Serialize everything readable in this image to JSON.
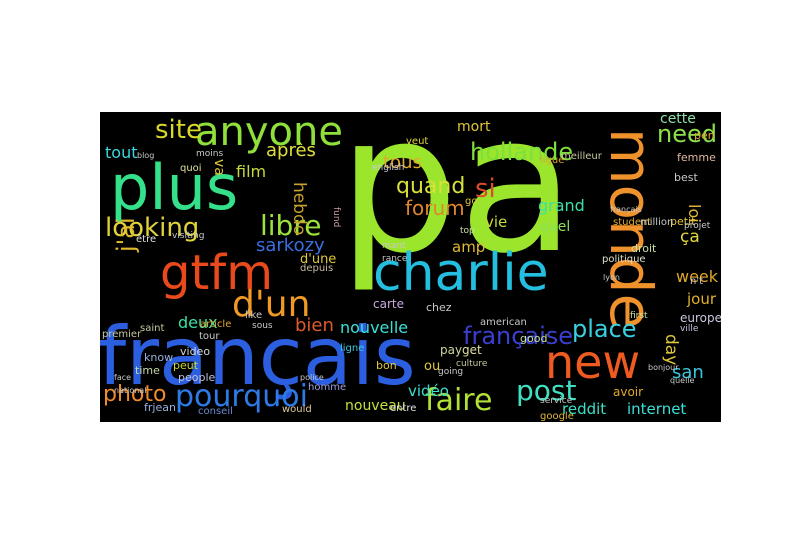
{
  "wordcloud": {
    "background": "#000000",
    "words": [
      {
        "text": "pa",
        "color": "#9be62c"
      },
      {
        "text": "français",
        "color": "#2c5fe0"
      },
      {
        "text": "monde",
        "color": "#f0922c"
      },
      {
        "text": "plus",
        "color": "#35e08a"
      },
      {
        "text": "charlie",
        "color": "#24bfe0"
      },
      {
        "text": "gtfm",
        "color": "#e84a1c"
      },
      {
        "text": "anyone",
        "color": "#8fe03a"
      },
      {
        "text": "new",
        "color": "#ef5a20"
      },
      {
        "text": "d'un",
        "color": "#f09a24"
      },
      {
        "text": "pourquoi",
        "color": "#2d7be6"
      },
      {
        "text": "faire",
        "color": "#b2e034"
      },
      {
        "text": "française",
        "color": "#3b3fcf"
      },
      {
        "text": "hollande",
        "color": "#7ee03a"
      },
      {
        "text": "site",
        "color": "#d8d82a"
      },
      {
        "text": "looking",
        "color": "#e0d23a"
      },
      {
        "text": "libre",
        "color": "#9be23a"
      },
      {
        "text": "photo",
        "color": "#f08a2c"
      },
      {
        "text": "post",
        "color": "#3ee0c0"
      },
      {
        "text": "place",
        "color": "#3ad0e0"
      },
      {
        "text": "need",
        "color": "#8ce24a"
      },
      {
        "text": "si",
        "color": "#e04a2c"
      },
      {
        "text": "quand",
        "color": "#d8e03a"
      },
      {
        "text": "forum",
        "color": "#e0862c"
      },
      {
        "text": "tous",
        "color": "#e0aa2c"
      },
      {
        "text": "sarkozy",
        "color": "#3a6ee0"
      },
      {
        "text": "j'ai",
        "color": "#e0bb2c"
      },
      {
        "text": "bien",
        "color": "#e05a2c"
      },
      {
        "text": "après",
        "color": "#e0e03a"
      },
      {
        "text": "hebdo",
        "color": "#c8a22c"
      },
      {
        "text": "film",
        "color": "#c8d83a"
      },
      {
        "text": "grand",
        "color": "#3ae0a8"
      },
      {
        "text": "nouvelle",
        "color": "#3ae0d8"
      },
      {
        "text": "deux",
        "color": "#3ae0a0"
      },
      {
        "text": "week",
        "color": "#e0a82c"
      },
      {
        "text": "jour",
        "color": "#e0b22c"
      },
      {
        "text": "day",
        "color": "#e0c83a"
      },
      {
        "text": "san",
        "color": "#3ac8e0"
      },
      {
        "text": "vie",
        "color": "#c8d83a"
      },
      {
        "text": "amp",
        "color": "#e0b83a"
      },
      {
        "text": "mort",
        "color": "#e0c83a"
      },
      {
        "text": "cette",
        "color": "#8ce0a8"
      },
      {
        "text": "tout",
        "color": "#3ad8e0"
      },
      {
        "text": "vidéo",
        "color": "#3ae0d0"
      },
      {
        "text": "nouveau",
        "color": "#c8e03a"
      },
      {
        "text": "reddit",
        "color": "#3ae0c8"
      },
      {
        "text": "internet",
        "color": "#3ae0d8"
      },
      {
        "text": "ça",
        "color": "#e0d83a"
      },
      {
        "text": "loi",
        "color": "#e0b83a"
      },
      {
        "text": "quel",
        "color": "#8ce05a"
      },
      {
        "text": "d'une",
        "color": "#e0c83a"
      },
      {
        "text": "être",
        "color": "#e0e0e0"
      },
      {
        "text": "video",
        "color": "#d8d8d8"
      },
      {
        "text": "peut",
        "color": "#c8d83a"
      },
      {
        "text": "time",
        "color": "#c8d8a8"
      },
      {
        "text": "know",
        "color": "#9ab0e0"
      },
      {
        "text": "people",
        "color": "#c0c0e0"
      },
      {
        "text": "premier",
        "color": "#c8c8a0"
      },
      {
        "text": "article",
        "color": "#e0a82c"
      },
      {
        "text": "depuis",
        "color": "#c8b8a0"
      },
      {
        "text": "frjean",
        "color": "#9ab0e0"
      },
      {
        "text": "conseil",
        "color": "#6a8ad0"
      },
      {
        "text": "ligne",
        "color": "#3ac8e0"
      },
      {
        "text": "bon",
        "color": "#e0c83a"
      },
      {
        "text": "ou",
        "color": "#e0c83a"
      },
      {
        "text": "get",
        "color": "#e0e0a0"
      },
      {
        "text": "pay",
        "color": "#c8d8a0"
      },
      {
        "text": "chez",
        "color": "#c8c8c8"
      },
      {
        "text": "carte",
        "color": "#c8a8e0"
      },
      {
        "text": "good",
        "color": "#c8e0a0"
      },
      {
        "text": "american",
        "color": "#c8c8c8"
      },
      {
        "text": "avoir",
        "color": "#e0a82c"
      },
      {
        "text": "europe",
        "color": "#c8c8e0"
      },
      {
        "text": "droit",
        "color": "#c8e0a0"
      },
      {
        "text": "petit",
        "color": "#e0c83a"
      },
      {
        "text": "femme",
        "color": "#e0b8a0"
      },
      {
        "text": "best",
        "color": "#c8c8c8"
      },
      {
        "text": "pen",
        "color": "#e0a82c"
      },
      {
        "text": "english",
        "color": "#c8c8e0"
      },
      {
        "text": "veut",
        "color": "#e0d83a"
      },
      {
        "text": "ligue",
        "color": "#e0a82c"
      },
      {
        "text": "meilleur",
        "color": "#c8c8a0"
      },
      {
        "text": "service",
        "color": "#c8c8c8"
      },
      {
        "text": "politique",
        "color": "#e0e0c8"
      },
      {
        "text": "student",
        "color": "#e0a82c"
      },
      {
        "text": "million",
        "color": "#c8c8c8"
      },
      {
        "text": "google",
        "color": "#e0b83a"
      },
      {
        "text": "culture",
        "color": "#c8c8a0"
      },
      {
        "text": "entre",
        "color": "#e0e0e0"
      },
      {
        "text": "going",
        "color": "#c8c8c8"
      },
      {
        "text": "would",
        "color": "#e0c8a0"
      },
      {
        "text": "homme",
        "color": "#a0a0e0"
      },
      {
        "text": "quoi",
        "color": "#e0e0a0"
      },
      {
        "text": "moins",
        "color": "#c8c8c8"
      },
      {
        "text": "saint",
        "color": "#c8c8a0"
      },
      {
        "text": "sous",
        "color": "#c8c8c8"
      },
      {
        "text": "like",
        "color": "#c8c8c8"
      },
      {
        "text": "top",
        "color": "#c8e0a0"
      },
      {
        "text": "rance",
        "color": "#c8c8c8"
      },
      {
        "text": "fund",
        "color": "#c8a0a0"
      },
      {
        "text": "ville",
        "color": "#c8c8e0"
      },
      {
        "text": "first",
        "color": "#c8e0a0"
      },
      {
        "text": "projet",
        "color": "#c8c8c8"
      },
      {
        "text": "n't",
        "color": "#c8c8c8"
      },
      {
        "text": "tour",
        "color": "#c8c8c8"
      },
      {
        "text": "visiting",
        "color": "#c8c8c8"
      },
      {
        "text": "français",
        "color": "#c8c8c8"
      },
      {
        "text": "lyon",
        "color": "#c8c8c8"
      },
      {
        "text": "bonjour",
        "color": "#c8c8c8"
      },
      {
        "text": "quelle",
        "color": "#c8c8c8"
      },
      {
        "text": "face",
        "color": "#c8c8c8"
      },
      {
        "text": "national",
        "color": "#c8c8c8"
      },
      {
        "text": "blog",
        "color": "#c8c8c8"
      },
      {
        "text": "police",
        "color": "#c8c8c8"
      },
      {
        "text": "mant",
        "color": "#c8c8c8"
      },
      {
        "text": "va",
        "color": "#e0c83a"
      },
      {
        "text": "go",
        "color": "#e0c83a"
      }
    ]
  }
}
